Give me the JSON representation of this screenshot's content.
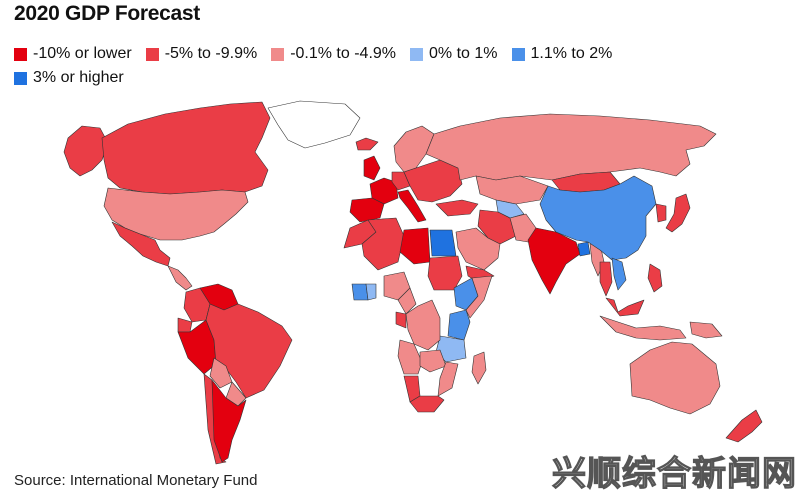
{
  "title": "2020 GDP Forecast",
  "legend": [
    {
      "label": "-10% or lower",
      "color": "#e3000f"
    },
    {
      "label": "-5% to -9.9%",
      "color": "#ea3d46"
    },
    {
      "label": "-0.1% to -4.9%",
      "color": "#f08a8a"
    },
    {
      "label": "0% to 1%",
      "color": "#8fb9f3"
    },
    {
      "label": "1.1% to 2%",
      "color": "#4a90e9"
    },
    {
      "label": "3% or higher",
      "color": "#1f72e0"
    }
  ],
  "source": "Source: International Monetary Fund",
  "watermark": "兴顺综合新闻网",
  "map": {
    "no_data_color": "#ffffff",
    "border_color": "#333333",
    "regions": [
      {
        "name": "Canada",
        "category": 1
      },
      {
        "name": "Alaska",
        "category": 1
      },
      {
        "name": "Greenland",
        "category": null
      },
      {
        "name": "United States",
        "category": 2
      },
      {
        "name": "Mexico",
        "category": 1
      },
      {
        "name": "Central America",
        "category": 2
      },
      {
        "name": "Venezuela",
        "category": 0
      },
      {
        "name": "Colombia",
        "category": 1
      },
      {
        "name": "Peru",
        "category": 0
      },
      {
        "name": "Ecuador",
        "category": 1
      },
      {
        "name": "Brazil",
        "category": 1
      },
      {
        "name": "Bolivia",
        "category": 2
      },
      {
        "name": "Argentina",
        "category": 0
      },
      {
        "name": "Chile",
        "category": 1
      },
      {
        "name": "Paraguay",
        "category": 2
      },
      {
        "name": "Iceland",
        "category": 1
      },
      {
        "name": "United Kingdom",
        "category": 0
      },
      {
        "name": "Spain",
        "category": 0
      },
      {
        "name": "France",
        "category": 0
      },
      {
        "name": "Italy",
        "category": 0
      },
      {
        "name": "Germany",
        "category": 1
      },
      {
        "name": "Scandinavia",
        "category": 2
      },
      {
        "name": "Eastern Europe",
        "category": 1
      },
      {
        "name": "Russia",
        "category": 2
      },
      {
        "name": "Kazakhstan",
        "category": 2
      },
      {
        "name": "Turkey",
        "category": 1
      },
      {
        "name": "Iran",
        "category": 1
      },
      {
        "name": "Saudi Arabia",
        "category": 2
      },
      {
        "name": "Yemen",
        "category": 1
      },
      {
        "name": "Uzbekistan",
        "category": 3
      },
      {
        "name": "Mongolia",
        "category": 1
      },
      {
        "name": "China",
        "category": 4
      },
      {
        "name": "India",
        "category": 0
      },
      {
        "name": "Pakistan",
        "category": 2
      },
      {
        "name": "Bangladesh",
        "category": 5
      },
      {
        "name": "Myanmar",
        "category": 2
      },
      {
        "name": "Thailand",
        "category": 1
      },
      {
        "name": "Vietnam",
        "category": 4
      },
      {
        "name": "Malaysia",
        "category": 1
      },
      {
        "name": "Indonesia",
        "category": 2
      },
      {
        "name": "Philippines",
        "category": 1
      },
      {
        "name": "Japan",
        "category": 1
      },
      {
        "name": "Korea",
        "category": 1
      },
      {
        "name": "Morocco",
        "category": 1
      },
      {
        "name": "Algeria",
        "category": 1
      },
      {
        "name": "Libya",
        "category": 0
      },
      {
        "name": "Egypt",
        "category": 5
      },
      {
        "name": "Sudan",
        "category": 1
      },
      {
        "name": "Ethiopia",
        "category": 4
      },
      {
        "name": "Kenya",
        "category": 4
      },
      {
        "name": "Somalia",
        "category": 2
      },
      {
        "name": "Tanzania",
        "category": 3
      },
      {
        "name": "Nigeria",
        "category": 2
      },
      {
        "name": "Cote d'Ivoire",
        "category": 4
      },
      {
        "name": "Ghana",
        "category": 3
      },
      {
        "name": "Cameroon",
        "category": 2
      },
      {
        "name": "Gabon",
        "category": 1
      },
      {
        "name": "DR Congo",
        "category": 2
      },
      {
        "name": "Angola",
        "category": 2
      },
      {
        "name": "Zambia",
        "category": 2
      },
      {
        "name": "Mozambique",
        "category": 2
      },
      {
        "name": "Madagascar",
        "category": 2
      },
      {
        "name": "Namibia",
        "category": 1
      },
      {
        "name": "South Africa",
        "category": 1
      },
      {
        "name": "Australia",
        "category": 2
      },
      {
        "name": "Papua New Guinea",
        "category": 2
      },
      {
        "name": "New Zealand",
        "category": 1
      }
    ]
  }
}
